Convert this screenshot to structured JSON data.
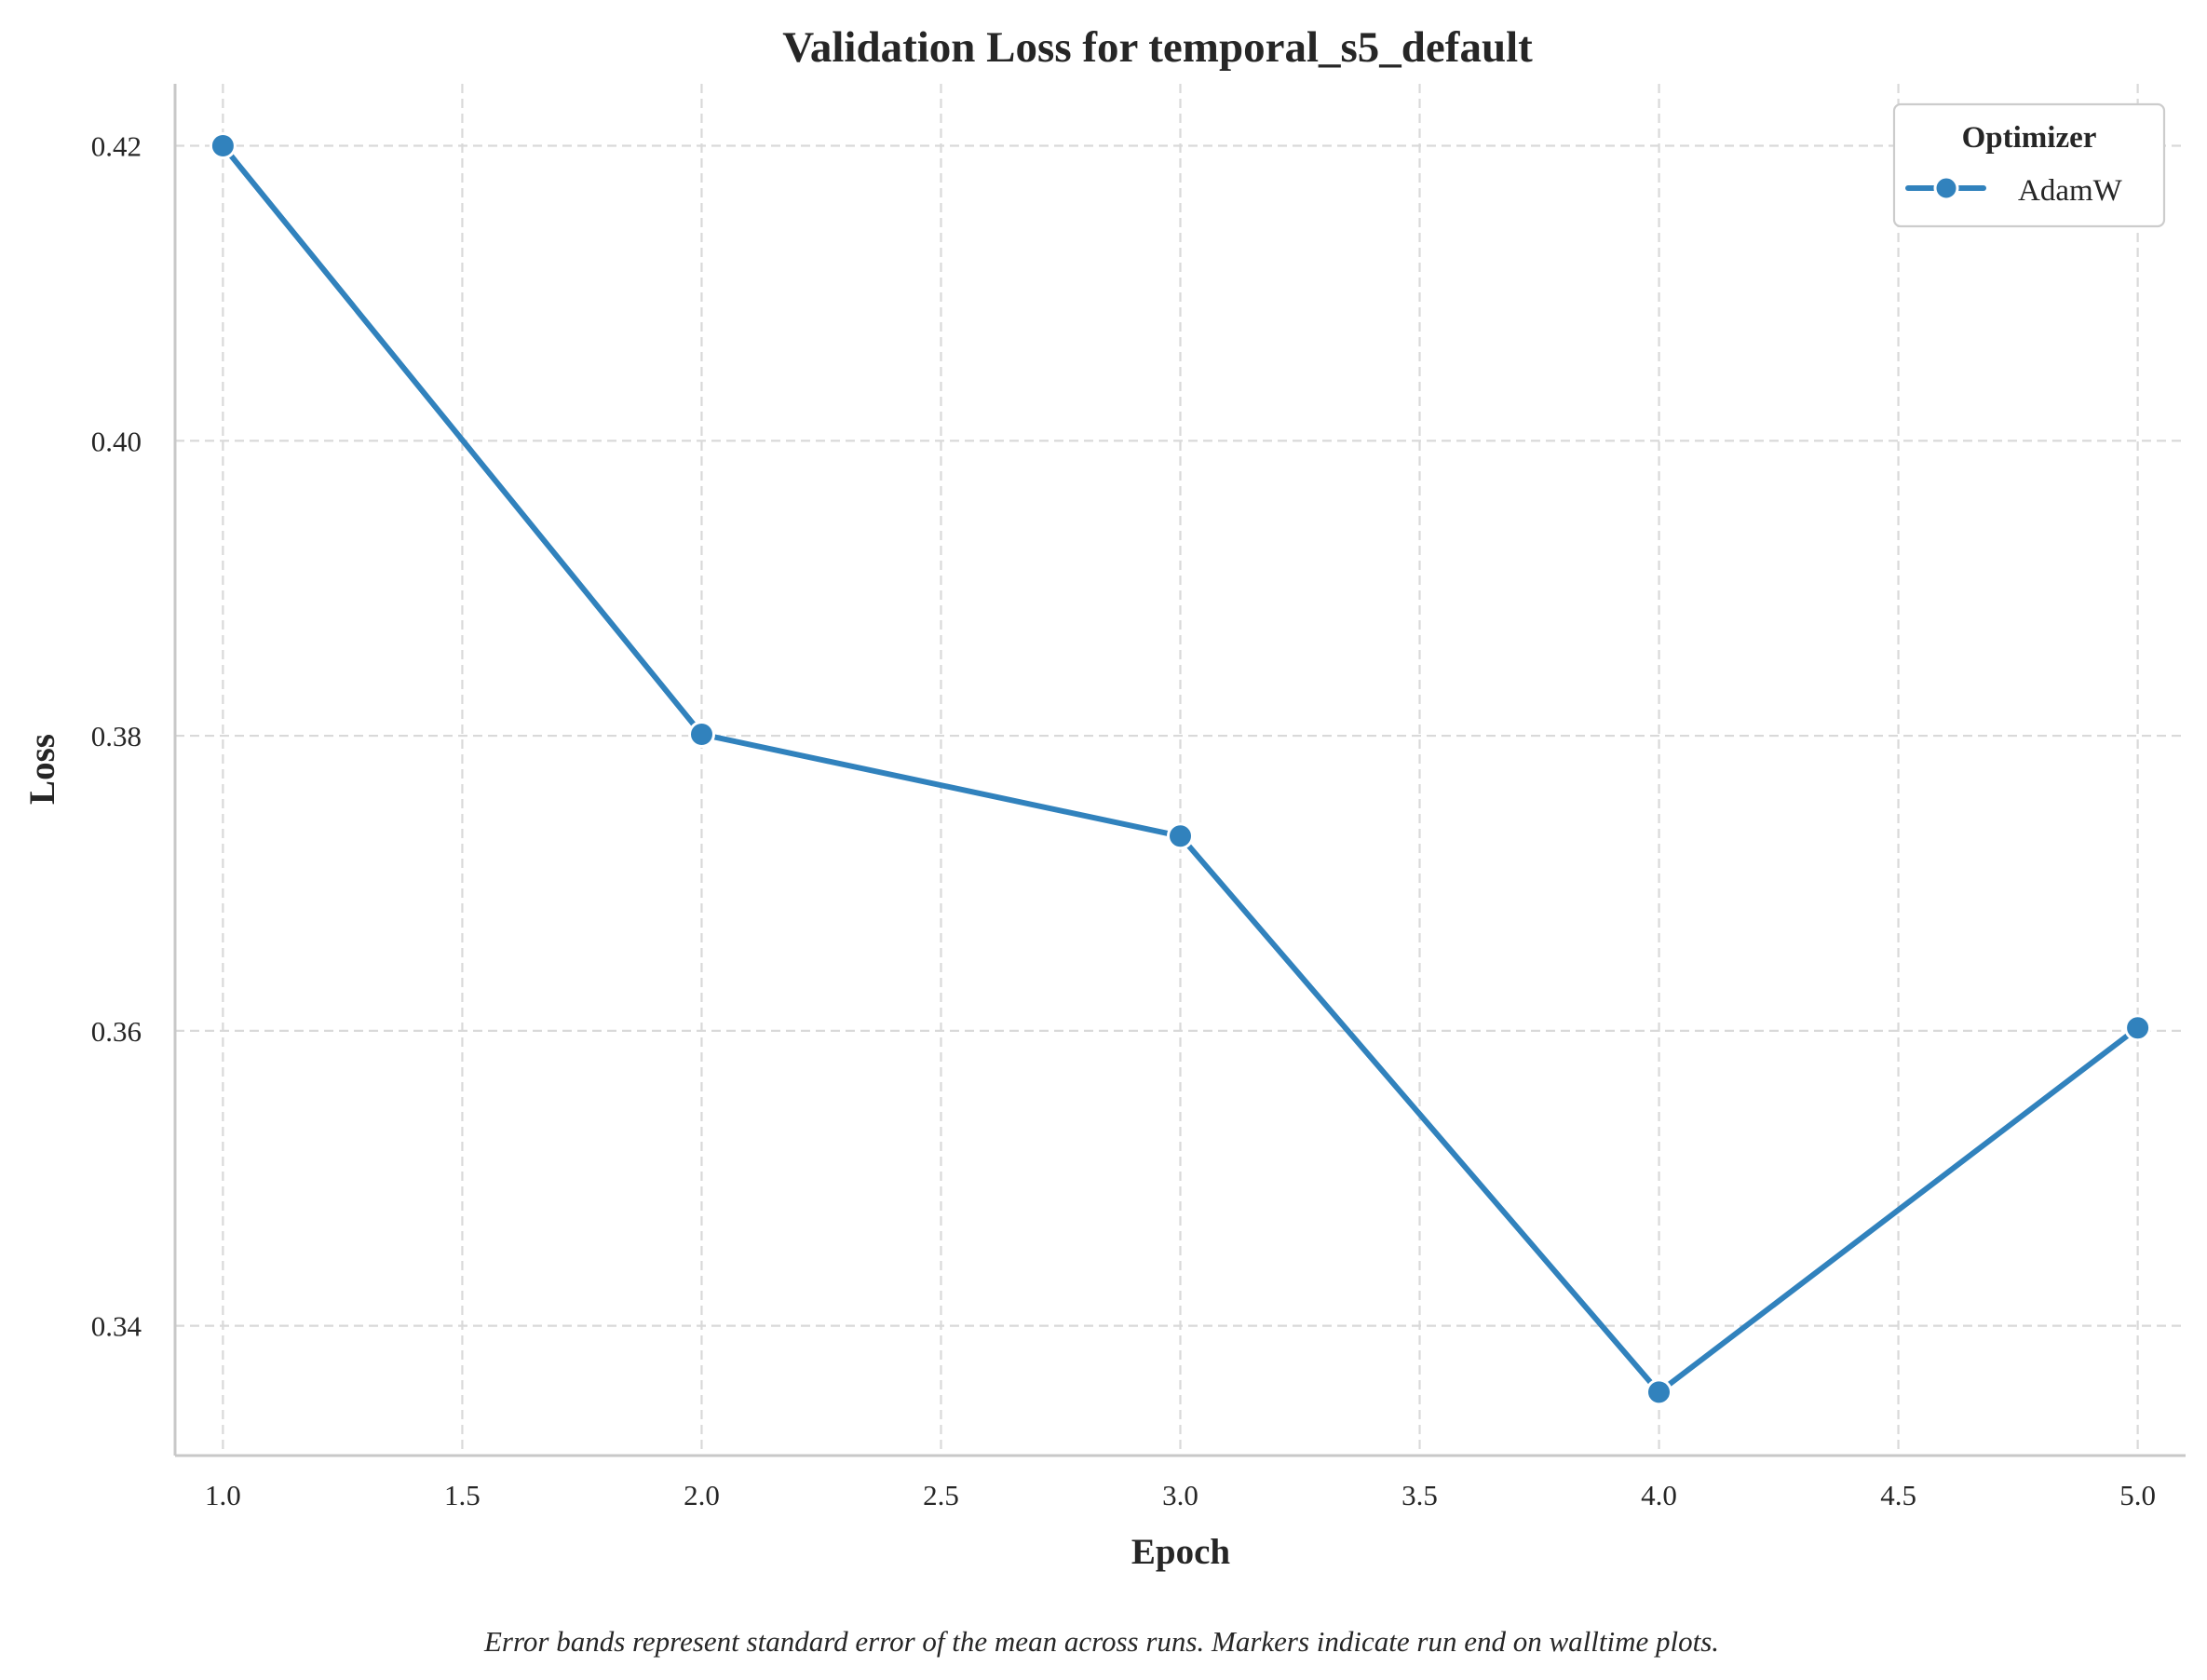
{
  "chart_data": {
    "type": "line",
    "title": "Validation Loss for temporal_s5_default",
    "xlabel": "Epoch",
    "ylabel": "Loss",
    "xlim": [
      0.9,
      5.1
    ],
    "ylim": [
      0.3312,
      0.4242
    ],
    "x_ticks": [
      1.0,
      1.5,
      2.0,
      2.5,
      3.0,
      3.5,
      4.0,
      4.5,
      5.0
    ],
    "x_tick_labels": [
      "1.0",
      "1.5",
      "2.0",
      "2.5",
      "3.0",
      "3.5",
      "4.0",
      "4.5",
      "5.0"
    ],
    "y_ticks": [
      0.34,
      0.36,
      0.38,
      0.4,
      0.42
    ],
    "y_tick_labels": [
      "0.34",
      "0.36",
      "0.38",
      "0.40",
      "0.42"
    ],
    "grid": true,
    "legend": {
      "title": "Optimizer",
      "placement": "top-right"
    },
    "series": [
      {
        "name": "AdamW",
        "color": "#3182bd",
        "marker": "circle",
        "x": [
          1,
          2,
          3,
          4,
          5
        ],
        "y": [
          0.42,
          0.3801,
          0.3732,
          0.3355,
          0.3602
        ]
      }
    ],
    "footnote": "Error bands represent standard error of the mean across runs. Markers indicate run end on walltime plots."
  }
}
